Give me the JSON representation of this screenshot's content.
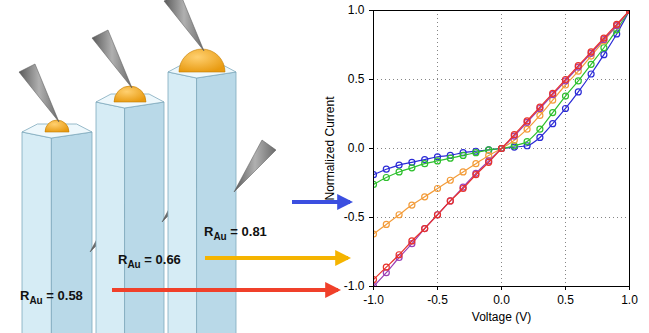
{
  "chart_data": {
    "type": "line",
    "x_label": "Voltage (V)",
    "y_label": "Normalized Current",
    "x": [
      -1.0,
      -0.9,
      -0.8,
      -0.7,
      -0.6,
      -0.5,
      -0.4,
      -0.3,
      -0.2,
      -0.1,
      0.0,
      0.1,
      0.2,
      0.3,
      0.4,
      0.5,
      0.6,
      0.7,
      0.8,
      0.9,
      1.0
    ],
    "series": [
      {
        "color": "#2b2bd6",
        "marker": "circle",
        "line_style": "solid",
        "values": [
          -0.19,
          -0.15,
          -0.12,
          -0.1,
          -0.08,
          -0.06,
          -0.05,
          -0.03,
          -0.02,
          -0.01,
          0.0,
          0.01,
          0.02,
          0.08,
          0.18,
          0.29,
          0.41,
          0.54,
          0.68,
          0.83,
          1.0
        ]
      },
      {
        "color": "#2ec02e",
        "marker": "circle",
        "line_style": "solid",
        "values": [
          -0.26,
          -0.21,
          -0.17,
          -0.14,
          -0.11,
          -0.09,
          -0.07,
          -0.05,
          -0.03,
          -0.01,
          0.0,
          0.02,
          0.05,
          0.14,
          0.26,
          0.38,
          0.49,
          0.61,
          0.73,
          0.86,
          1.0
        ]
      },
      {
        "color": "#f39c3a",
        "marker": "circle",
        "line_style": "solid",
        "values": [
          -0.62,
          -0.55,
          -0.48,
          -0.41,
          -0.35,
          -0.29,
          -0.23,
          -0.17,
          -0.11,
          -0.05,
          0.0,
          0.06,
          0.14,
          0.24,
          0.35,
          0.46,
          0.56,
          0.67,
          0.78,
          0.89,
          1.0
        ]
      },
      {
        "color": "#9b3fb5",
        "marker": "circle",
        "line_style": "solid",
        "values": [
          -1.0,
          -0.9,
          -0.79,
          -0.69,
          -0.58,
          -0.48,
          -0.38,
          -0.28,
          -0.18,
          -0.09,
          0.0,
          0.09,
          0.19,
          0.29,
          0.39,
          0.49,
          0.59,
          0.69,
          0.79,
          0.89,
          1.0
        ]
      },
      {
        "color": "#e8322a",
        "marker": "circle",
        "line_style": "solid",
        "values": [
          -0.95,
          -0.86,
          -0.77,
          -0.67,
          -0.58,
          -0.48,
          -0.38,
          -0.29,
          -0.19,
          -0.1,
          0.0,
          0.1,
          0.2,
          0.3,
          0.4,
          0.5,
          0.6,
          0.7,
          0.8,
          0.9,
          1.0
        ]
      }
    ],
    "xlim": [
      -1,
      1
    ],
    "ylim": [
      -1,
      1
    ],
    "xticks": [
      {
        "value": -1,
        "label": "-1.0"
      },
      {
        "value": -0.5,
        "label": "-0.5"
      },
      {
        "value": 0,
        "label": "0.0"
      },
      {
        "value": 0.5,
        "label": "0.5"
      },
      {
        "value": 1,
        "label": "1.0"
      }
    ],
    "yticks": [
      {
        "value": -1,
        "label": "-1.0"
      },
      {
        "value": -0.5,
        "label": "-0.5"
      },
      {
        "value": 0,
        "label": "0.0"
      },
      {
        "value": 0.5,
        "label": "0.5"
      },
      {
        "value": 1,
        "label": "1.0"
      }
    ],
    "grid": true,
    "annotations": [
      {
        "text": "RAu = 0.58",
        "subscript": "Au",
        "color": "#f0402a"
      },
      {
        "text": "RAu = 0.66",
        "subscript": "Au",
        "color": "#f5b400"
      },
      {
        "text": "RAu = 0.81",
        "subscript": "Au",
        "color": "#3b4fe0"
      }
    ]
  }
}
